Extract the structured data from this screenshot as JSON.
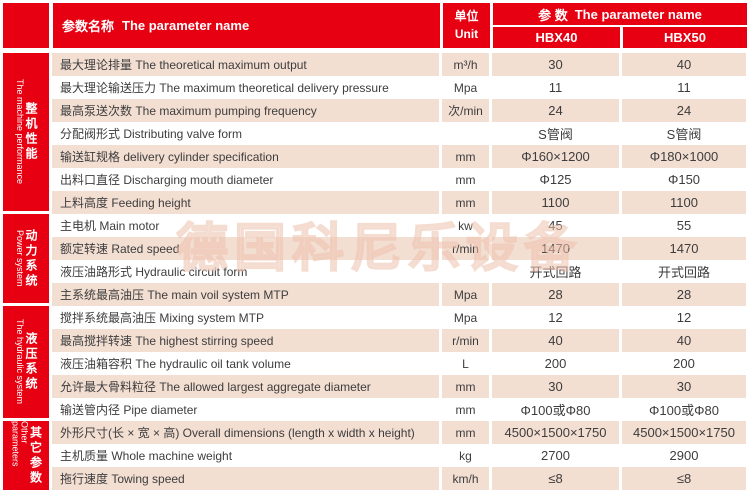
{
  "header": {
    "param_name_zh": "参数名称",
    "param_name_en": "The parameter name",
    "unit_zh": "单位",
    "unit_en": "Unit",
    "params_zh": "参 数",
    "params_en": "The parameter name",
    "models": [
      "HBX40",
      "HBX50"
    ]
  },
  "sections": [
    {
      "zh": "整机性能",
      "en": "The machine performance",
      "rows": 7
    },
    {
      "zh": "动力系统",
      "en": "Power system",
      "rows": 4
    },
    {
      "zh": "液压系统",
      "en": "The hydraulic system",
      "rows": 5
    },
    {
      "zh": "其它参数",
      "en": "Other parameters",
      "rows": 3
    }
  ],
  "rows": [
    {
      "label": "最大理论排量 The theoretical maximum output",
      "unit": "m³/h",
      "hbx40": "30",
      "hbx50": "40"
    },
    {
      "label": "最大理论输送压力  The maximum theoretical delivery pressure",
      "unit": "Mpa",
      "hbx40": "11",
      "hbx50": "11"
    },
    {
      "label": "最高泵送次数 The maximum pumping frequency",
      "unit": "次/min",
      "hbx40": "24",
      "hbx50": "24"
    },
    {
      "label": "分配阀形式 Distributing valve form",
      "unit": "",
      "hbx40": "S管阀",
      "hbx50": "S管阀"
    },
    {
      "label": "输送缸规格 delivery cylinder specification",
      "unit": "mm",
      "hbx40": "Φ160×1200",
      "hbx50": "Φ180×1000"
    },
    {
      "label": "出料口直径 Discharging mouth diameter",
      "unit": "mm",
      "hbx40": "Φ125",
      "hbx50": "Φ150"
    },
    {
      "label": "上料高度 Feeding height",
      "unit": "mm",
      "hbx40": "1100",
      "hbx50": "1100"
    },
    {
      "label": "主电机 Main motor",
      "unit": "kw",
      "hbx40": "45",
      "hbx50": "55"
    },
    {
      "label": "额定转速 Rated speed",
      "unit": "r/min",
      "hbx40": "1470",
      "hbx50": "1470"
    },
    {
      "label": "液压油路形式 Hydraulic circuit form",
      "unit": "",
      "hbx40": "开式回路",
      "hbx50": "开式回路"
    },
    {
      "label": "主系统最高油压 The main voil system MTP",
      "unit": "Mpa",
      "hbx40": "28",
      "hbx50": "28"
    },
    {
      "label": "搅拌系统最高油压 Mixing system MTP",
      "unit": "Mpa",
      "hbx40": "12",
      "hbx50": "12"
    },
    {
      "label": "最高搅拌转速 The highest stirring speed",
      "unit": "r/min",
      "hbx40": "40",
      "hbx50": "40"
    },
    {
      "label": "液压油箱容积 The hydraulic oil tank volume",
      "unit": "L",
      "hbx40": "200",
      "hbx50": "200"
    },
    {
      "label": "允许最大骨料粒径 The allowed largest aggregate diameter",
      "unit": "mm",
      "hbx40": "30",
      "hbx50": "30"
    },
    {
      "label": "输送管内径 Pipe diameter",
      "unit": "mm",
      "hbx40": "Φ100或Φ80",
      "hbx50": "Φ100或Φ80"
    },
    {
      "label": "外形尺寸(长 × 宽 × 高) Overall dimensions (length x width x height)",
      "unit": "mm",
      "hbx40": "4500×1500×1750",
      "hbx50": "4500×1500×1750"
    },
    {
      "label": "主机质量 Whole machine weight",
      "unit": "kg",
      "hbx40": "2700",
      "hbx50": "2900"
    },
    {
      "label": "拖行速度 Towing speed",
      "unit": "km/h",
      "hbx40": "≤8",
      "hbx50": "≤8"
    }
  ],
  "watermark": "德国科尼乐设备",
  "colors": {
    "header_red": "#e60012",
    "row_pink": "#f3ded2",
    "row_white": "#ffffff",
    "text": "#3d3d3d",
    "header_text": "#ffffff",
    "watermark": "#f2cdbb"
  }
}
